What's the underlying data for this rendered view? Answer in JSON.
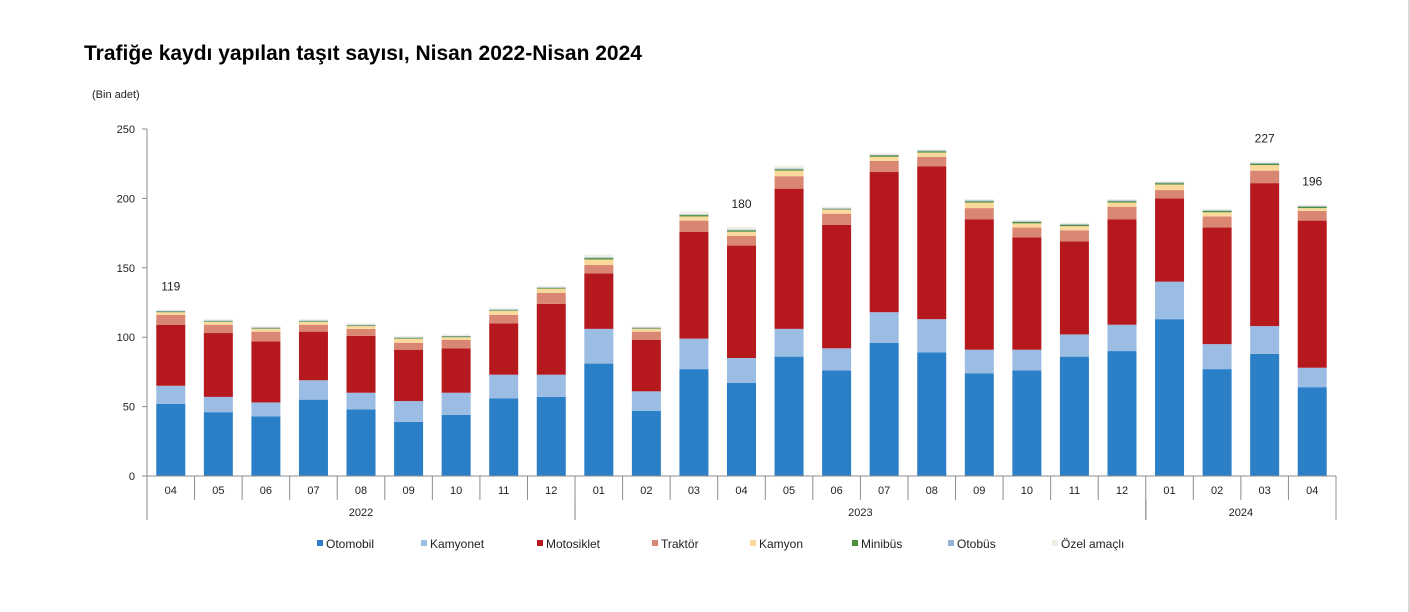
{
  "chart_data": {
    "type": "bar",
    "stacked": true,
    "title": "Trafiğe kaydı yapılan taşıt sayısı, Nisan 2022-Nisan 2024",
    "unit_label": "(Bin adet)",
    "ylim": [
      0,
      250
    ],
    "yticks": [
      "0",
      "50",
      "100",
      "150",
      "200",
      "250"
    ],
    "categories": [
      "04",
      "05",
      "06",
      "07",
      "08",
      "09",
      "10",
      "11",
      "12",
      "01",
      "02",
      "03",
      "04",
      "05",
      "06",
      "07",
      "08",
      "09",
      "10",
      "11",
      "12",
      "01",
      "02",
      "03",
      "04"
    ],
    "year_groups": [
      {
        "label": "2022",
        "start": 0,
        "end": 8
      },
      {
        "label": "2023",
        "start": 9,
        "end": 20
      },
      {
        "label": "2024",
        "start": 21,
        "end": 24
      }
    ],
    "total_labels": [
      {
        "index": 0,
        "text": "119"
      },
      {
        "index": 12,
        "text": "180"
      },
      {
        "index": 23,
        "text": "227"
      },
      {
        "index": 24,
        "text": "196"
      }
    ],
    "legend_position": "bottom",
    "series": [
      {
        "name": "Otomobil",
        "color": "#2a7fc7",
        "values": [
          52,
          46,
          43,
          55,
          48,
          39,
          44,
          56,
          57,
          81,
          47,
          77,
          67,
          86,
          76,
          96,
          89,
          74,
          76,
          86,
          90,
          113,
          77,
          88,
          64
        ]
      },
      {
        "name": "Kamyonet",
        "color": "#9cbde3",
        "values": [
          13,
          11,
          10,
          14,
          12,
          15,
          16,
          17,
          16,
          25,
          14,
          22,
          18,
          20,
          16,
          22,
          24,
          17,
          15,
          16,
          19,
          27,
          18,
          20,
          14
        ]
      },
      {
        "name": "Motosiklet",
        "color": "#b5191e",
        "values": [
          44,
          46,
          44,
          35,
          41,
          37,
          32,
          37,
          51,
          40,
          37,
          77,
          81,
          101,
          89,
          101,
          110,
          94,
          81,
          67,
          76,
          60,
          84,
          103,
          106
        ]
      },
      {
        "name": "Traktör",
        "color": "#d98672",
        "values": [
          7,
          6,
          7,
          5,
          5,
          5,
          6,
          6,
          8,
          6,
          6,
          8,
          7,
          9,
          8,
          8,
          7,
          8,
          7,
          8,
          9,
          6,
          8,
          9,
          7
        ]
      },
      {
        "name": "Kamyon",
        "color": "#fbd99d",
        "values": [
          2,
          2,
          2,
          2,
          2,
          3,
          2,
          3,
          3,
          4,
          2,
          3,
          3,
          4,
          3,
          3,
          3,
          4,
          3,
          3,
          3,
          4,
          3,
          4,
          2
        ]
      },
      {
        "name": "Minibüs",
        "color": "#4e8f3a",
        "values": [
          0.5,
          0.5,
          0.5,
          0.5,
          0.5,
          0.5,
          0.5,
          0.5,
          0.5,
          1,
          0.5,
          1,
          1,
          1,
          0.5,
          1,
          1,
          1,
          1,
          1,
          1,
          1,
          1,
          1,
          1
        ]
      },
      {
        "name": "Otobüs",
        "color": "#96b2d6",
        "values": [
          0.5,
          0.5,
          0.5,
          0.5,
          0.5,
          0.5,
          0.5,
          0.5,
          0.5,
          0.5,
          0.5,
          0.5,
          0.5,
          0.5,
          0.5,
          0.5,
          0.5,
          0.5,
          0.5,
          0.5,
          0.5,
          0.5,
          0.5,
          0.5,
          0.5
        ]
      },
      {
        "name": "Özel amaçlı",
        "color": "#f0eee4",
        "values": [
          1,
          1,
          1,
          1,
          1,
          1,
          1,
          1,
          1,
          2,
          1,
          2,
          2,
          2,
          1,
          1,
          1,
          1,
          1,
          1,
          1,
          1,
          1,
          1,
          1
        ]
      }
    ]
  }
}
